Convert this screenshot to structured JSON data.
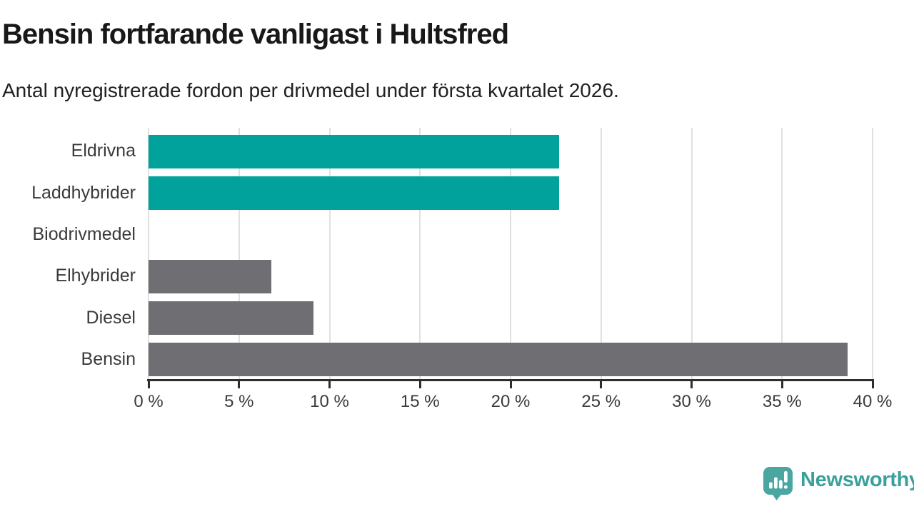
{
  "header": {
    "title": "Bensin fortfarande vanligast i Hultsfred",
    "subtitle": "Antal nyregistrerade fordon per drivmedel under första kvartalet 2026."
  },
  "chart_data": {
    "type": "bar",
    "orientation": "horizontal",
    "title": "Bensin fortfarande vanligast i Hultsfred",
    "subtitle": "Antal nyregistrerade fordon per drivmedel under första kvartalet 2026.",
    "categories": [
      "Eldrivna",
      "Laddhybrider",
      "Biodrivmedel",
      "Elhybrider",
      "Diesel",
      "Bensin"
    ],
    "values": [
      22.7,
      22.7,
      0,
      6.8,
      9.1,
      38.6
    ],
    "unit": "%",
    "bar_colors": [
      "#00a29b",
      "#00a29b",
      "#6e6e73",
      "#6e6e73",
      "#6e6e73",
      "#6e6e73"
    ],
    "highlight_color": "#00a29b",
    "default_color": "#6e6e73",
    "xlim": [
      0,
      40
    ],
    "x_ticks": [
      0,
      5,
      10,
      15,
      20,
      25,
      30,
      35,
      40
    ],
    "x_tick_labels": [
      "0 %",
      "5 %",
      "10 %",
      "15 %",
      "20 %",
      "25 %",
      "30 %",
      "35 %",
      "40 %"
    ],
    "grid": "vertical-on",
    "gridline_color": "#e0e0e0",
    "axis_color": "#2e2e2e",
    "legend": "none"
  },
  "branding": {
    "wordmark": "Newsworthy",
    "icon": "newsworthy-speech-bubble-bar-chart-icon",
    "logo_color": "#4aa6a1",
    "wordmark_color": "#3aa09b"
  }
}
